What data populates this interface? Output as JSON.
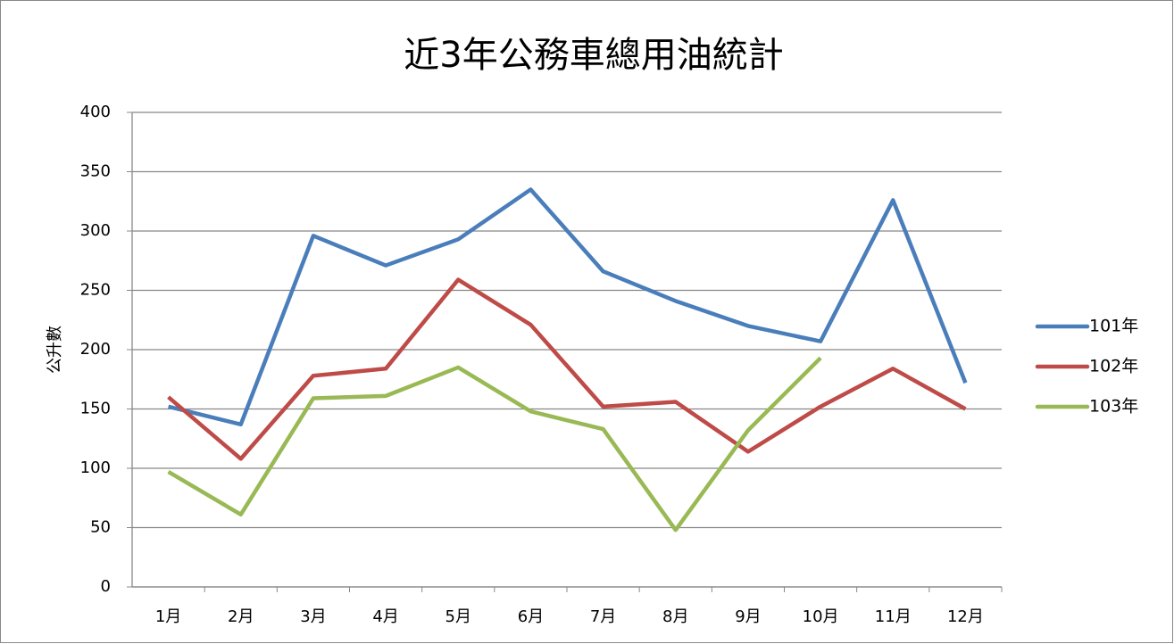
{
  "chart_data": {
    "type": "line",
    "title": "近3年公務車總用油統計",
    "y_label": "公升數",
    "categories": [
      "1月",
      "2月",
      "3月",
      "4月",
      "5月",
      "6月",
      "7月",
      "8月",
      "9月",
      "10月",
      "11月",
      "12月"
    ],
    "series": [
      {
        "name": "101年",
        "color": "#4a7ebb",
        "values": [
          152,
          137,
          296,
          271,
          293,
          335,
          266,
          241,
          220,
          207,
          326,
          172
        ]
      },
      {
        "name": "102年",
        "color": "#be4b48",
        "values": [
          160,
          108,
          178,
          184,
          259,
          221,
          152,
          156,
          114,
          152,
          184,
          150
        ]
      },
      {
        "name": "103年",
        "color": "#98b954",
        "values": [
          97,
          61,
          159,
          161,
          185,
          148,
          133,
          48,
          132,
          193,
          null,
          null
        ]
      }
    ],
    "ylim": [
      0,
      400
    ],
    "yticks": [
      0,
      50,
      100,
      150,
      200,
      250,
      300,
      350,
      400
    ],
    "grid": true,
    "legend": "right"
  }
}
